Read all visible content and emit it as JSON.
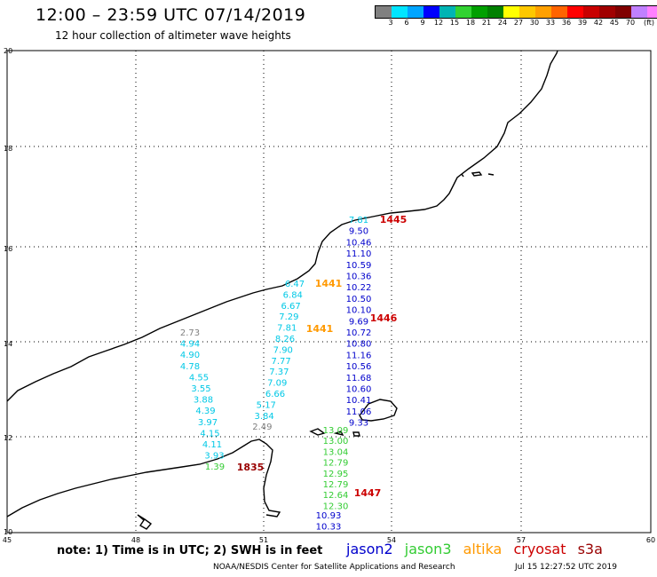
{
  "header": {
    "title": "12:00 – 23:59 UTC 07/14/2019",
    "subtitle": "12 hour collection of altimeter wave heights"
  },
  "color_scale": {
    "colors": [
      "#808080",
      "#00e5ff",
      "#00a5ff",
      "#0000ff",
      "#00b4b4",
      "#32d232",
      "#00a000",
      "#008000",
      "#ffff00",
      "#ffc800",
      "#ffa000",
      "#ff6400",
      "#ff0000",
      "#c80000",
      "#a00000",
      "#800000",
      "#c080ff",
      "#ff80ff",
      "#000000"
    ],
    "labels": [
      "3",
      "6",
      "9",
      "12",
      "15",
      "18",
      "21",
      "24",
      "27",
      "30",
      "33",
      "36",
      "39",
      "42",
      "45",
      "70",
      "(ft)"
    ]
  },
  "axes": {
    "lat_labels": [
      "20",
      "18",
      "16",
      "14",
      "12",
      "10"
    ],
    "lon_labels": [
      "45",
      "48",
      "51",
      "54",
      "57",
      "60"
    ]
  },
  "tracks": {
    "jason2_a": [
      "7.81",
      "9.50",
      "10.46",
      "11.10",
      "10.59",
      "10.36",
      "10.22",
      "10.50",
      "10.10",
      "9.69",
      "10.72",
      "10.80",
      "11.16",
      "10.56",
      "11.68",
      "10.60",
      "10.41",
      "11.06",
      "9.33"
    ],
    "jason2_b": [
      "10.93",
      "10.33"
    ],
    "jason3_a": [
      "13.09",
      "13.00",
      "13.04",
      "12.79",
      "12.95",
      "12.79",
      "12.64",
      "12.30"
    ],
    "altika_a": [
      "6.47",
      "6.84",
      "6.67",
      "7.29",
      "7.81",
      "8.26",
      "7.90",
      "7.77",
      "7.37",
      "7.09",
      "6.66",
      "5.17",
      "3.84",
      "2.49"
    ],
    "saral_b": [
      "2.73",
      "4.94",
      "4.90",
      "4.78",
      "4.55",
      "3.55",
      "3.88",
      "4.39",
      "3.97",
      "4.15",
      "4.11",
      "3.93"
    ],
    "s3_low": "1.39"
  },
  "times": {
    "t1445": "1445",
    "t1446": "1446",
    "t1447": "1447",
    "t1441a": "1441",
    "t1441b": "1441",
    "t1835": "1835"
  },
  "colors": {
    "jason2": "#0000cc",
    "jason3": "#33cc33",
    "altika": "#ff9900",
    "cryosat": "#cc0000",
    "s3a": "#990000",
    "cyan": "#00c8e6",
    "gray": "#808080",
    "green": "#33cc33"
  },
  "footer": {
    "note": "note: 1) Time is in UTC; 2) SWH is in feet",
    "legend": [
      "jason2",
      "jason3",
      "altika",
      "cryosat",
      "s3a"
    ],
    "credit": "NOAA/NESDIS Center for Satellite Applications and Research",
    "stamp": "Jul 15 12:27:52 UTC 2019"
  }
}
